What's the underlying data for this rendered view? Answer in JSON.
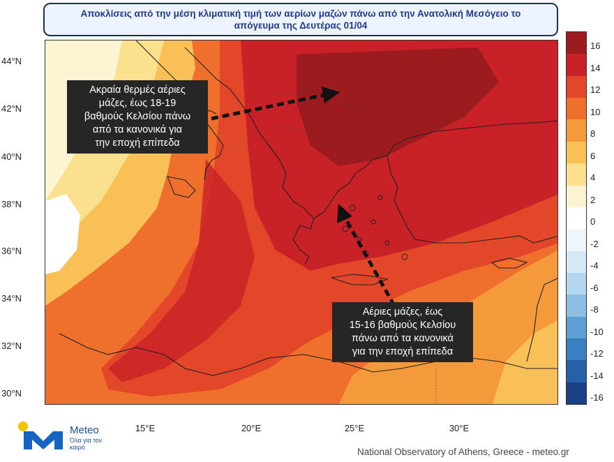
{
  "title": {
    "line1": "Αποκλίσεις από την μέση κλιματική τιμή των αερίων μαζών πάνω από την Ανατολική Μεσόγειο το",
    "line2": "απόγευμα της Δευτέρας 01/04"
  },
  "map": {
    "lat_labels": [
      "44°N",
      "42°N",
      "40°N",
      "38°N",
      "36°N",
      "34°N",
      "32°N",
      "30°N"
    ],
    "lon_labels": [
      "15°E",
      "20°E",
      "25°E",
      "30°E"
    ],
    "features": [
      "Italy",
      "Balkans",
      "Greece",
      "Aegean Sea",
      "Turkey",
      "Crete",
      "Cyprus",
      "Libya",
      "Egypt"
    ]
  },
  "callouts": {
    "north": {
      "lines": [
        "Ακραία θερμές αέριες",
        "μάζες, έως 18-19",
        "βαθμούς Κελσίου πάνω",
        "από τα κανονικά για",
        "την εποχή επίπεδα"
      ]
    },
    "south": {
      "lines": [
        "Αέριες μάζες, έως",
        "15-16 βαθμούς Κελσίου",
        "πάνω από τα κανονικά",
        "για την εποχή επίπεδα"
      ]
    }
  },
  "legend": {
    "labels": [
      "16",
      "14",
      "12",
      "10",
      "8",
      "6",
      "4",
      "2",
      "0",
      "-2",
      "-4",
      "-6",
      "-8",
      "-10",
      "-12",
      "-14",
      "-16"
    ],
    "colors": [
      "#9b1b1e",
      "#c82127",
      "#e3472a",
      "#ef6f2d",
      "#f59a3b",
      "#f9c057",
      "#fbe08e",
      "#fdf4d4",
      "#ffffff",
      "#eef6fb",
      "#d4e8f5",
      "#b4d6ee",
      "#8ebfe3",
      "#5d9fd2",
      "#3a7fc0",
      "#2660a8",
      "#1a3f84"
    ]
  },
  "branding": {
    "logo_name": "Meteo",
    "logo_tagline": "Όλα για τον καιρό",
    "credit": "National Observatory of Athens, Greece - meteo.gr"
  }
}
